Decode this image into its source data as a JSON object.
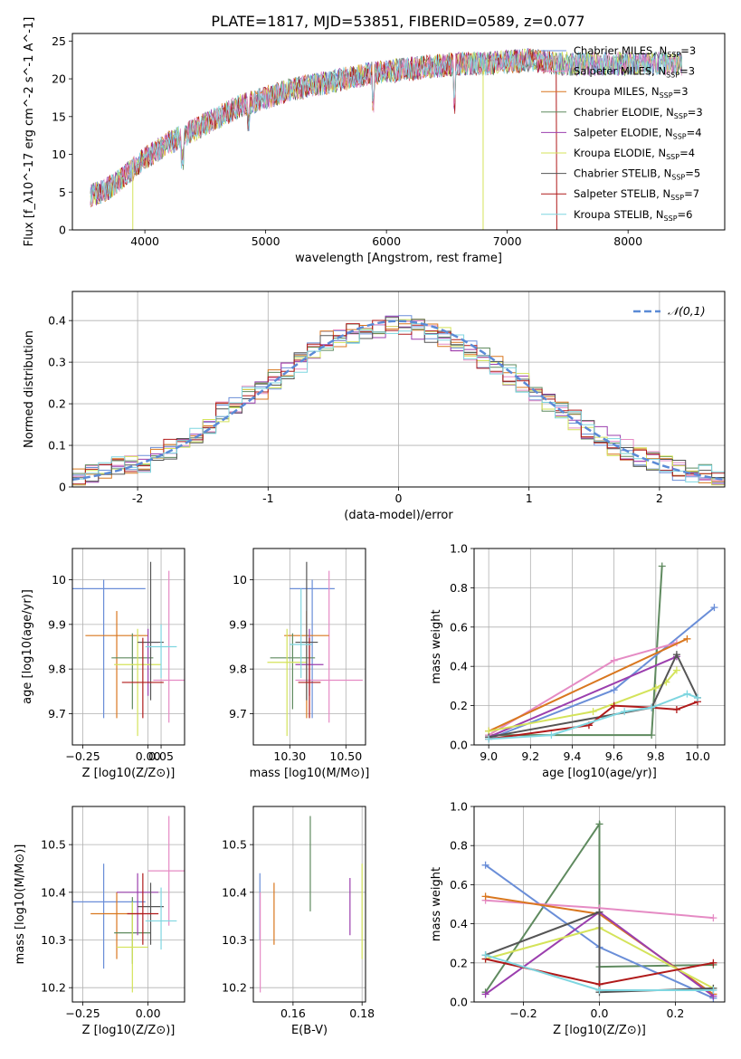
{
  "figure": {
    "title": "PLATE=1817, MJD=53851, FIBERID=0589, z=0.077"
  },
  "models": [
    {
      "name": "Chabrier MILES",
      "nssp": "3",
      "color": "#6a8ed8"
    },
    {
      "name": "Salpeter MILES",
      "nssp": "3",
      "color": "#e58bc4"
    },
    {
      "name": "Kroupa MILES",
      "nssp": "3",
      "color": "#d9771f"
    },
    {
      "name": "Chabrier ELODIE",
      "nssp": "3",
      "color": "#5f8a5f"
    },
    {
      "name": "Salpeter ELODIE",
      "nssp": "4",
      "color": "#9b3fae"
    },
    {
      "name": "Kroupa ELODIE",
      "nssp": "4",
      "color": "#d4e35a"
    },
    {
      "name": "Chabrier STELIB",
      "nssp": "5",
      "color": "#555555"
    },
    {
      "name": "Salpeter STELIB",
      "nssp": "7",
      "color": "#b01a1a"
    },
    {
      "name": "Kroupa STELIB",
      "nssp": "6",
      "color": "#7fd6e0"
    }
  ],
  "chart_data": [
    {
      "id": "spectrum",
      "type": "line",
      "xlabel": "wavelength [Angstrom, rest frame]",
      "ylabel": "Flux [f_λ10^-17 erg cm^-2 s^-1 A^-1]",
      "xlim": [
        3400,
        8800
      ],
      "ylim": [
        0,
        26
      ],
      "xticks": [
        4000,
        5000,
        6000,
        7000,
        8000
      ],
      "yticks": [
        0,
        5,
        10,
        15,
        20,
        25
      ],
      "legend": "top-right",
      "continuum": {
        "x": [
          3550,
          3700,
          3900,
          4000,
          4200,
          4500,
          4800,
          5000,
          5200,
          5500,
          5800,
          6000,
          6300,
          6600,
          6800,
          7000,
          7200,
          7400
        ],
        "y": [
          4.5,
          5.5,
          8.0,
          9.5,
          11.5,
          14.0,
          16.5,
          17.5,
          18.5,
          19.5,
          20.5,
          21.0,
          21.5,
          22.0,
          22.0,
          22.3,
          22.5,
          22.0
        ]
      }
    },
    {
      "id": "residuals",
      "type": "line",
      "xlabel": "(data-model)/error",
      "ylabel": "Normed distribution",
      "xlim": [
        -2.5,
        2.5
      ],
      "ylim": [
        0,
        0.47
      ],
      "xticks": [
        -2,
        -1,
        0,
        1,
        2
      ],
      "yticks": [
        0.0,
        0.1,
        0.2,
        0.3,
        0.4
      ],
      "legend": "top-right",
      "legend_label": "𝒩(0,1)",
      "bin_width": 0.1,
      "hist_start": -2.5,
      "histogram": [
        0.02,
        0.03,
        0.04,
        0.05,
        0.05,
        0.06,
        0.08,
        0.09,
        0.11,
        0.13,
        0.15,
        0.18,
        0.2,
        0.22,
        0.23,
        0.26,
        0.28,
        0.3,
        0.33,
        0.35,
        0.36,
        0.37,
        0.38,
        0.38,
        0.39,
        0.39,
        0.38,
        0.37,
        0.36,
        0.35,
        0.33,
        0.31,
        0.29,
        0.27,
        0.25,
        0.23,
        0.2,
        0.18,
        0.16,
        0.14,
        0.12,
        0.1,
        0.09,
        0.07,
        0.06,
        0.05,
        0.04,
        0.03,
        0.03,
        0.02
      ]
    },
    {
      "id": "age_vs_Z",
      "type": "scatter",
      "xlabel": "Z [log10(Z/Z⊙)]",
      "ylabel": "age [log10(age/yr)]",
      "xlim": [
        -0.29,
        0.14
      ],
      "ylim": [
        9.63,
        10.07
      ],
      "xticks": [
        -0.25,
        0.0,
        0.05
      ],
      "xticklabels": [
        "−0.25",
        "0.00",
        "0.05"
      ],
      "yticks": [
        9.7,
        9.8,
        9.9,
        10.0
      ],
      "points": [
        {
          "x": -0.17,
          "y": 9.98,
          "xerr": 0.16,
          "ylo": 9.69,
          "yhi": 10.0
        },
        {
          "x": 0.08,
          "y": 9.775,
          "xerr": 0.06,
          "ylo": 9.68,
          "yhi": 10.02
        },
        {
          "x": -0.12,
          "y": 9.875,
          "xerr": 0.12,
          "ylo": 9.69,
          "yhi": 9.93
        },
        {
          "x": -0.06,
          "y": 9.825,
          "xerr": 0.08,
          "ylo": 9.71,
          "yhi": 9.88
        },
        {
          "x": 0.0,
          "y": 9.86,
          "xerr": 0.04,
          "ylo": 9.74,
          "yhi": 9.89
        },
        {
          "x": -0.04,
          "y": 9.81,
          "xerr": 0.09,
          "ylo": 9.65,
          "yhi": 9.89
        },
        {
          "x": 0.01,
          "y": 9.86,
          "xerr": 0.05,
          "ylo": 9.73,
          "yhi": 10.04
        },
        {
          "x": -0.02,
          "y": 9.77,
          "xerr": 0.08,
          "ylo": 9.69,
          "yhi": 9.87
        },
        {
          "x": 0.05,
          "y": 9.85,
          "xerr": 0.06,
          "ylo": 9.78,
          "yhi": 9.9
        }
      ]
    },
    {
      "id": "age_vs_mass",
      "type": "scatter",
      "xlabel": "mass [log10(M/M⊙)]",
      "ylabel": "",
      "xlim": [
        10.17,
        10.57
      ],
      "ylim": [
        9.63,
        10.07
      ],
      "xticks": [
        10.3,
        10.5
      ],
      "xticklabels": [
        "10.30",
        "10.50"
      ],
      "yticks": [
        9.7,
        9.8,
        9.9,
        10.0
      ],
      "points": [
        {
          "x": 10.38,
          "y": 9.98,
          "xerr": 0.08,
          "ylo": 9.69,
          "yhi": 10.0
        },
        {
          "x": 10.44,
          "y": 9.775,
          "xerr": 0.12,
          "ylo": 9.68,
          "yhi": 10.02
        },
        {
          "x": 10.36,
          "y": 9.875,
          "xerr": 0.08,
          "ylo": 9.69,
          "yhi": 9.93
        },
        {
          "x": 10.31,
          "y": 9.825,
          "xerr": 0.08,
          "ylo": 9.71,
          "yhi": 9.88
        },
        {
          "x": 10.37,
          "y": 9.81,
          "xerr": 0.05,
          "ylo": 9.74,
          "yhi": 9.89
        },
        {
          "x": 10.29,
          "y": 9.815,
          "xerr": 0.07,
          "ylo": 9.65,
          "yhi": 9.89
        },
        {
          "x": 10.36,
          "y": 9.86,
          "xerr": 0.04,
          "ylo": 9.73,
          "yhi": 10.04
        },
        {
          "x": 10.37,
          "y": 9.77,
          "xerr": 0.04,
          "ylo": 9.69,
          "yhi": 9.87
        },
        {
          "x": 10.34,
          "y": 9.855,
          "xerr": 0.04,
          "ylo": 9.78,
          "yhi": 9.98
        }
      ]
    },
    {
      "id": "weight_vs_age",
      "type": "line",
      "xlabel": "age [log10(age/yr)]",
      "ylabel": "mass weight",
      "xlim": [
        8.93,
        10.13
      ],
      "ylim": [
        0,
        1.0
      ],
      "xticks": [
        9.0,
        9.2,
        9.4,
        9.6,
        9.8,
        10.0
      ],
      "xticklabels": [
        "9.0",
        "9.2",
        "9.4",
        "9.6",
        "9.8",
        "10.0"
      ],
      "yticks": [
        0.0,
        0.2,
        0.4,
        0.6,
        0.8,
        1.0
      ],
      "yticklabels": [
        "0.0",
        "0.2",
        "0.4",
        "0.6",
        "0.8",
        "1.0"
      ],
      "series": [
        {
          "x": [
            9.0,
            9.6,
            10.08
          ],
          "y": [
            0.03,
            0.28,
            0.7
          ]
        },
        {
          "x": [
            9.0,
            9.6,
            9.9
          ],
          "y": [
            0.05,
            0.43,
            0.52
          ]
        },
        {
          "x": [
            9.0,
            9.95
          ],
          "y": [
            0.07,
            0.54
          ]
        },
        {
          "x": [
            9.0,
            9.78,
            9.83
          ],
          "y": [
            0.05,
            0.05,
            0.91
          ]
        },
        {
          "x": [
            9.0,
            9.9
          ],
          "y": [
            0.04,
            0.45
          ]
        },
        {
          "x": [
            9.0,
            9.5,
            9.8,
            9.85,
            9.9
          ],
          "y": [
            0.07,
            0.17,
            0.29,
            0.32,
            0.38
          ]
        },
        {
          "x": [
            9.0,
            9.78,
            9.9,
            10.0
          ],
          "y": [
            0.04,
            0.19,
            0.46,
            0.24
          ]
        },
        {
          "x": [
            9.0,
            9.48,
            9.6,
            9.78,
            9.9,
            10.0
          ],
          "y": [
            0.03,
            0.1,
            0.2,
            0.19,
            0.18,
            0.22
          ]
        },
        {
          "x": [
            9.0,
            9.3,
            9.65,
            9.78,
            9.95,
            10.0
          ],
          "y": [
            0.03,
            0.05,
            0.17,
            0.19,
            0.26,
            0.24
          ]
        }
      ]
    },
    {
      "id": "mass_vs_Z",
      "type": "scatter",
      "xlabel": "Z [log10(Z/Z⊙)]",
      "ylabel": "mass [log10(M/M⊙)]",
      "xlim": [
        -0.29,
        0.14
      ],
      "ylim": [
        10.17,
        10.58
      ],
      "xticks": [
        -0.25,
        0.0
      ],
      "xticklabels": [
        "−0.25",
        "0.00"
      ],
      "yticks": [
        10.2,
        10.3,
        10.4,
        10.5
      ],
      "points": [
        {
          "x": -0.17,
          "y": 10.38,
          "xerr": 0.16,
          "ylo": 10.24,
          "yhi": 10.46
        },
        {
          "x": 0.08,
          "y": 10.445,
          "xerr": 0.08,
          "ylo": 10.33,
          "yhi": 10.56
        },
        {
          "x": -0.12,
          "y": 10.355,
          "xerr": 0.1,
          "ylo": 10.26,
          "yhi": 10.4
        },
        {
          "x": -0.06,
          "y": 10.315,
          "xerr": 0.07,
          "ylo": 10.25,
          "yhi": 10.39
        },
        {
          "x": -0.04,
          "y": 10.4,
          "xerr": 0.08,
          "ylo": 10.31,
          "yhi": 10.44
        },
        {
          "x": -0.06,
          "y": 10.285,
          "xerr": 0.06,
          "ylo": 10.19,
          "yhi": 10.38
        },
        {
          "x": 0.01,
          "y": 10.37,
          "xerr": 0.05,
          "ylo": 10.29,
          "yhi": 10.42
        },
        {
          "x": -0.02,
          "y": 10.355,
          "xerr": 0.06,
          "ylo": 10.29,
          "yhi": 10.44
        },
        {
          "x": 0.05,
          "y": 10.34,
          "xerr": 0.06,
          "ylo": 10.28,
          "yhi": 10.41
        }
      ]
    },
    {
      "id": "mass_vs_ebv",
      "type": "scatter",
      "xlabel": "E(B-V)",
      "ylabel": "",
      "xlim": [
        0.1485,
        0.181
      ],
      "ylim": [
        10.17,
        10.58
      ],
      "xticks": [
        0.16,
        0.18
      ],
      "xticklabels": [
        "0.16",
        "0.18"
      ],
      "yticks": [
        10.2,
        10.3,
        10.4,
        10.5
      ],
      "points": [
        {
          "x": 0.1504,
          "ylo": 10.3,
          "yhi": 10.44
        },
        {
          "x": 0.1505,
          "ylo": 10.19,
          "yhi": 10.4
        },
        {
          "x": 0.1545,
          "ylo": 10.29,
          "yhi": 10.42
        },
        {
          "x": 0.165,
          "ylo": 10.36,
          "yhi": 10.56
        },
        {
          "x": 0.1765,
          "ylo": 10.31,
          "yhi": 10.43
        },
        {
          "x": 0.18,
          "ylo": 10.26,
          "yhi": 10.46
        }
      ]
    },
    {
      "id": "weight_vs_Z",
      "type": "line",
      "xlabel": "Z [log10(Z/Z⊙)]",
      "ylabel": "mass weight",
      "xlim": [
        -0.33,
        0.33
      ],
      "ylim": [
        0,
        1.0
      ],
      "xticks": [
        -0.2,
        0.0,
        0.2
      ],
      "xticklabels": [
        "−0.2",
        "0.0",
        "0.2"
      ],
      "yticks": [
        0.0,
        0.2,
        0.4,
        0.6,
        0.8,
        1.0
      ],
      "yticklabels": [
        "0.0",
        "0.2",
        "0.4",
        "0.6",
        "0.8",
        "1.0"
      ],
      "series": [
        {
          "x": [
            -0.3,
            0.0,
            0.3
          ],
          "y": [
            0.7,
            0.28,
            0.02
          ]
        },
        {
          "x": [
            -0.3,
            0.0,
            0.3
          ],
          "y": [
            0.52,
            0.48,
            0.43
          ]
        },
        {
          "x": [
            -0.3,
            0.0,
            0.3
          ],
          "y": [
            0.54,
            0.45,
            0.04
          ]
        },
        {
          "x": [
            -0.3,
            0.0,
            0.0,
            0.3
          ],
          "y": [
            0.05,
            0.91,
            0.18,
            0.19
          ]
        },
        {
          "x": [
            -0.3,
            0.0,
            0.3
          ],
          "y": [
            0.04,
            0.46,
            0.03
          ]
        },
        {
          "x": [
            -0.3,
            0.0,
            0.3
          ],
          "y": [
            0.22,
            0.38,
            0.07
          ]
        },
        {
          "x": [
            -0.3,
            0.0,
            0.0,
            0.3
          ],
          "y": [
            0.24,
            0.46,
            0.05,
            0.07
          ]
        },
        {
          "x": [
            -0.3,
            0.0,
            0.3
          ],
          "y": [
            0.22,
            0.09,
            0.2
          ]
        },
        {
          "x": [
            -0.3,
            0.0,
            0.3
          ],
          "y": [
            0.24,
            0.06,
            0.06
          ]
        }
      ]
    }
  ]
}
